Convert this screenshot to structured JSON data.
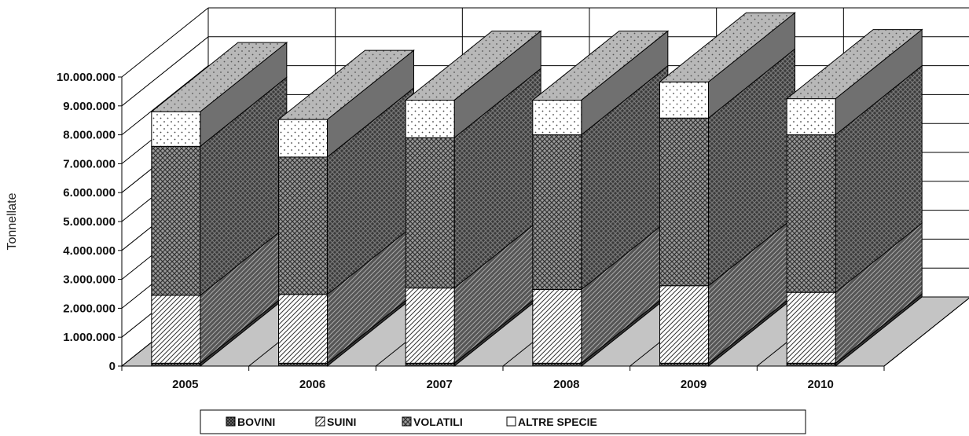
{
  "chart_data": {
    "type": "bar",
    "stacked": true,
    "three_d": true,
    "categories": [
      "2005",
      "2006",
      "2007",
      "2008",
      "2009",
      "2010"
    ],
    "series": [
      {
        "name": "BOVINI",
        "values": [
          100000,
          100000,
          100000,
          100000,
          100000,
          100000
        ]
      },
      {
        "name": "SUINI",
        "values": [
          2350000,
          2380000,
          2600000,
          2550000,
          2680000,
          2450000
        ]
      },
      {
        "name": "VOLATILI",
        "values": [
          5150000,
          4750000,
          5200000,
          5350000,
          5800000,
          5450000
        ]
      },
      {
        "name": "ALTRE SPECIE",
        "values": [
          1200000,
          1300000,
          1300000,
          1200000,
          1250000,
          1250000
        ]
      }
    ],
    "title": "",
    "xlabel": "",
    "ylabel": "Tonnellate",
    "ylim": [
      0,
      10000000
    ],
    "yticks": [
      "0",
      "1.000.000",
      "2.000.000",
      "3.000.000",
      "4.000.000",
      "5.000.000",
      "6.000.000",
      "7.000.000",
      "8.000.000",
      "9.000.000",
      "10.000.000"
    ],
    "grid": true,
    "legend_position": "bottom",
    "colors": {
      "bovini": "#2a2a2a",
      "suini": "#e8e8e8",
      "volatili": "#6e6e6e",
      "altre": "#ffffff",
      "floor": "#c4c4c4",
      "side": "#5a5a5a",
      "top": "#b8b8b8"
    }
  }
}
